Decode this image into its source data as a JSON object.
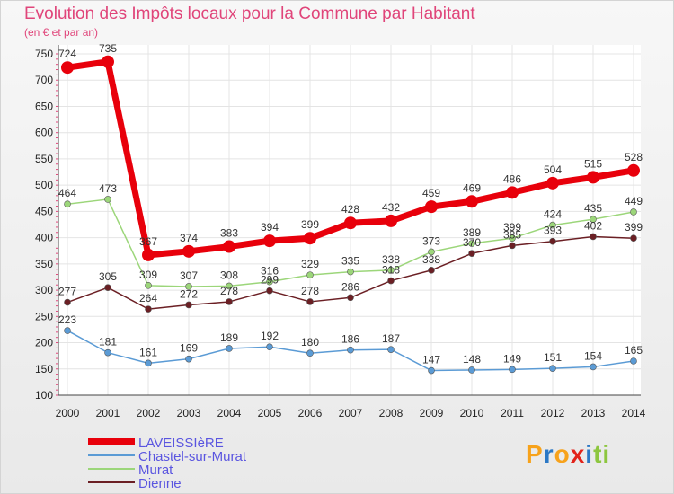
{
  "title": "Evolution des Impôts locaux pour la Commune par Habitant",
  "subtitle": "(en € et par an)",
  "brand": {
    "letters": [
      "P",
      "r",
      "o",
      "x",
      "i",
      "t",
      "i"
    ],
    "colors": [
      "#f7a21b",
      "#2b78c5",
      "#f7a21b",
      "#e2231a",
      "#2b78c5",
      "#8dc63f",
      "#8dc63f"
    ]
  },
  "chart_data": {
    "type": "line",
    "x": [
      "2000",
      "2001",
      "2002",
      "2003",
      "2004",
      "2005",
      "2006",
      "2007",
      "2008",
      "2009",
      "2010",
      "2011",
      "2012",
      "2013",
      "2014"
    ],
    "ylim": [
      100,
      750
    ],
    "yticks": [
      100,
      150,
      200,
      250,
      300,
      350,
      400,
      450,
      500,
      550,
      600,
      650,
      700,
      750
    ],
    "grid": true,
    "legend_position": "bottom-left",
    "series": [
      {
        "name": "LAVEISSIèRE",
        "color": "#e8000b",
        "values": [
          724,
          735,
          367,
          374,
          383,
          394,
          399,
          428,
          432,
          459,
          469,
          486,
          504,
          515,
          528
        ]
      },
      {
        "name": "Chastel-sur-Murat",
        "color": "#5b9bd5",
        "values": [
          223,
          181,
          161,
          169,
          189,
          192,
          180,
          186,
          187,
          147,
          148,
          149,
          151,
          154,
          165
        ]
      },
      {
        "name": "Murat",
        "color": "#9cd67a",
        "values": [
          464,
          473,
          309,
          307,
          308,
          316,
          329,
          335,
          338,
          373,
          389,
          399,
          424,
          435,
          449
        ]
      },
      {
        "name": "Dienne",
        "color": "#6b1f24",
        "values": [
          277,
          305,
          264,
          272,
          278,
          299,
          278,
          286,
          318,
          338,
          370,
          385,
          393,
          402,
          399
        ]
      }
    ]
  }
}
